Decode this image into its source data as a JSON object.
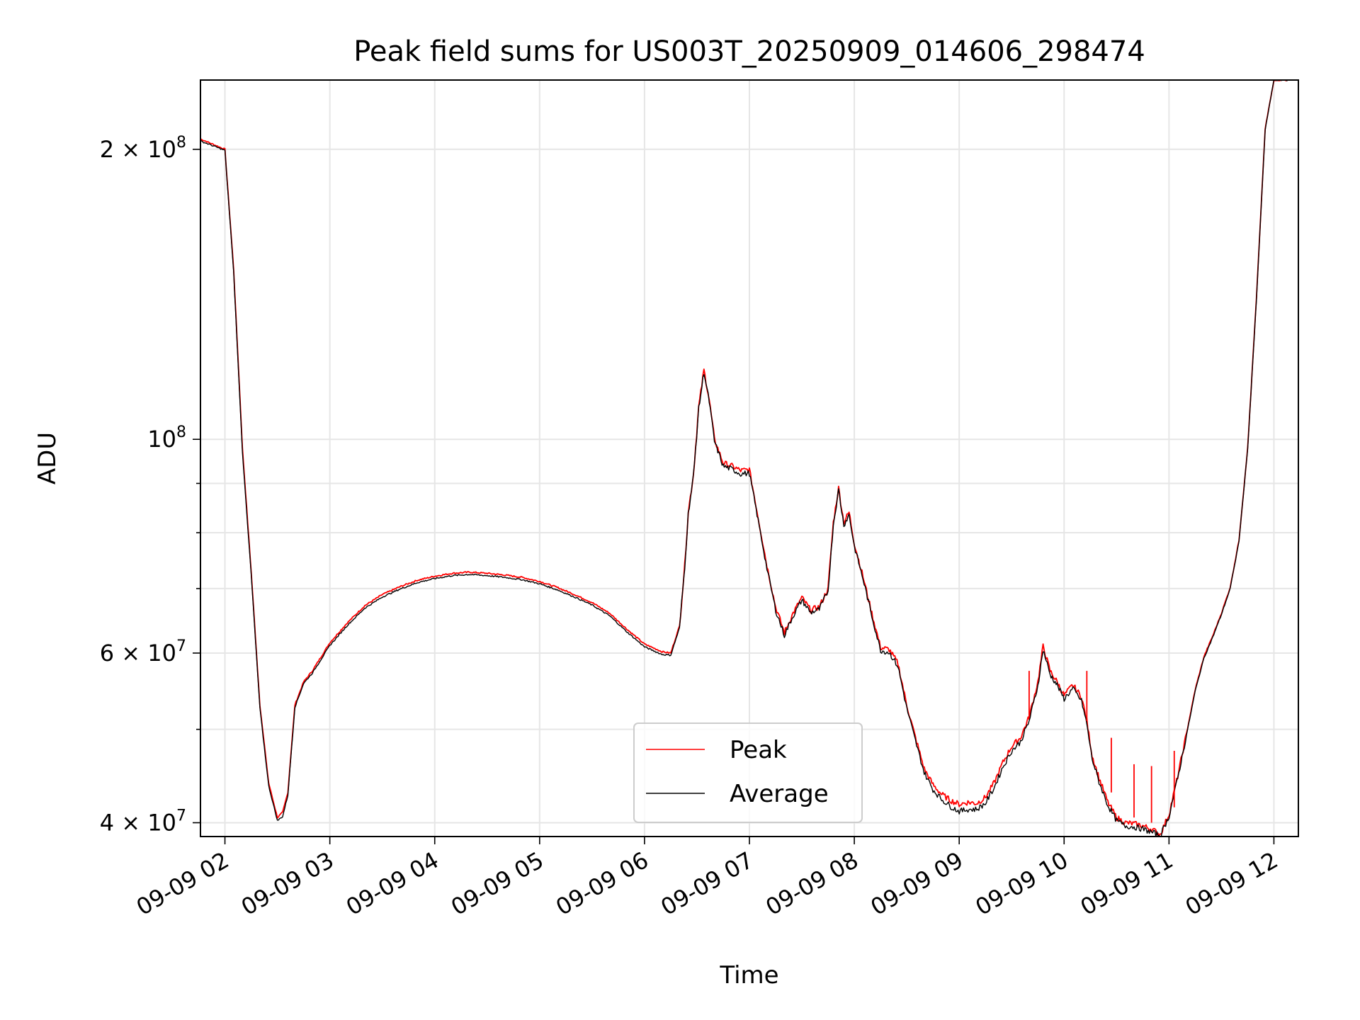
{
  "chart_data": {
    "type": "line",
    "title": "Peak field sums for US003T_20250909_014606_298474",
    "xlabel": "Time",
    "ylabel": "ADU",
    "yscale": "log",
    "grid": true,
    "legend_position": "lower-center",
    "xlim": [
      "09-09 01:46",
      "09-09 12:14"
    ],
    "ylim": [
      38700000,
      236000000
    ],
    "x_ticks": [
      "09-09 02",
      "09-09 03",
      "09-09 04",
      "09-09 05",
      "09-09 06",
      "09-09 07",
      "09-09 08",
      "09-09 09",
      "09-09 10",
      "09-09 11",
      "09-09 12"
    ],
    "y_ticks": [
      {
        "value": 40000000,
        "mantissa": "4",
        "exp": "7"
      },
      {
        "value": 60000000,
        "mantissa": "6",
        "exp": "7"
      },
      {
        "value": 100000000,
        "mantissa": "",
        "exp": "8"
      },
      {
        "value": 200000000,
        "mantissa": "2",
        "exp": "8"
      }
    ],
    "series": [
      {
        "name": "Peak",
        "color": "#ff0000",
        "x": [
          "01:46",
          "02:00",
          "02:05",
          "02:10",
          "02:15",
          "02:20",
          "02:25",
          "02:30",
          "02:33",
          "02:36",
          "02:40",
          "02:45",
          "02:50",
          "03:00",
          "03:10",
          "03:20",
          "03:30",
          "03:40",
          "03:50",
          "04:00",
          "04:10",
          "04:20",
          "04:30",
          "04:40",
          "04:50",
          "05:00",
          "05:10",
          "05:20",
          "05:30",
          "05:40",
          "05:50",
          "06:00",
          "06:10",
          "06:15",
          "06:20",
          "06:23",
          "06:25",
          "06:28",
          "06:31",
          "06:34",
          "06:37",
          "06:40",
          "06:45",
          "06:50",
          "06:55",
          "07:00",
          "07:05",
          "07:10",
          "07:15",
          "07:20",
          "07:25",
          "07:30",
          "07:35",
          "07:40",
          "07:45",
          "07:48",
          "07:51",
          "07:54",
          "07:57",
          "08:00",
          "08:05",
          "08:10",
          "08:15",
          "08:20",
          "08:25",
          "08:30",
          "08:35",
          "08:40",
          "08:45",
          "08:50",
          "08:55",
          "09:00",
          "09:05",
          "09:10",
          "09:15",
          "09:20",
          "09:25",
          "09:30",
          "09:35",
          "09:40",
          "09:45",
          "09:48",
          "09:52",
          "09:56",
          "10:00",
          "10:05",
          "10:10",
          "10:13",
          "10:16",
          "10:20",
          "10:25",
          "10:30",
          "10:35",
          "10:40",
          "10:45",
          "10:50",
          "10:55",
          "11:00",
          "11:05",
          "11:10",
          "11:15",
          "11:20",
          "11:25",
          "11:30",
          "11:35",
          "11:40",
          "11:45",
          "11:50",
          "11:55",
          "12:00",
          "12:05",
          "12:08"
        ],
        "y": [
          205000000,
          200000000,
          150000000,
          98000000,
          73000000,
          53000000,
          44000000,
          40500000,
          41000000,
          43000000,
          53000000,
          56000000,
          57500000,
          61500000,
          64500000,
          67200000,
          69000000,
          70300000,
          71400000,
          72100000,
          72600000,
          72800000,
          72600000,
          72300000,
          71900000,
          71200000,
          70200000,
          69000000,
          67700000,
          66000000,
          63500000,
          61300000,
          60200000,
          60000000,
          64000000,
          74000000,
          84000000,
          92000000,
          108000000,
          118000000,
          110000000,
          100000000,
          94500000,
          93800000,
          92800000,
          93000000,
          83000000,
          74000000,
          67000000,
          63000000,
          66000000,
          68500000,
          66500000,
          67000000,
          70000000,
          82000000,
          89000000,
          82000000,
          84000000,
          78000000,
          72000000,
          66000000,
          60800000,
          60500000,
          58500000,
          53000000,
          49000000,
          45500000,
          43800000,
          42800000,
          42200000,
          41800000,
          42000000,
          41900000,
          42500000,
          44000000,
          46200000,
          48000000,
          49000000,
          51500000,
          56000000,
          61000000,
          57500000,
          56000000,
          54200000,
          55600000,
          54000000,
          51000000,
          47000000,
          44500000,
          42000000,
          40500000,
          40000000,
          39900000,
          39700000,
          39400000,
          38900000,
          40800000,
          44700000,
          49500000,
          55000000,
          59500000,
          62500000,
          66000000,
          70200000,
          78500000,
          98000000,
          140000000,
          210000000,
          236000000,
          236000000,
          236000000
        ]
      },
      {
        "name": "Average",
        "color": "#000000",
        "x": [
          "01:46",
          "02:00",
          "02:05",
          "02:10",
          "02:15",
          "02:20",
          "02:25",
          "02:30",
          "02:33",
          "02:36",
          "02:40",
          "02:45",
          "02:50",
          "03:00",
          "03:10",
          "03:20",
          "03:30",
          "03:40",
          "03:50",
          "04:00",
          "04:10",
          "04:20",
          "04:30",
          "04:40",
          "04:50",
          "05:00",
          "05:10",
          "05:20",
          "05:30",
          "05:40",
          "05:50",
          "06:00",
          "06:10",
          "06:15",
          "06:20",
          "06:23",
          "06:25",
          "06:28",
          "06:31",
          "06:34",
          "06:37",
          "06:40",
          "06:45",
          "06:50",
          "06:55",
          "07:00",
          "07:05",
          "07:10",
          "07:15",
          "07:20",
          "07:25",
          "07:30",
          "07:35",
          "07:40",
          "07:45",
          "07:48",
          "07:51",
          "07:54",
          "07:57",
          "08:00",
          "08:05",
          "08:10",
          "08:15",
          "08:20",
          "08:25",
          "08:30",
          "08:35",
          "08:40",
          "08:45",
          "08:50",
          "08:55",
          "09:00",
          "09:05",
          "09:10",
          "09:15",
          "09:20",
          "09:25",
          "09:30",
          "09:35",
          "09:40",
          "09:45",
          "09:48",
          "09:52",
          "09:56",
          "10:00",
          "10:05",
          "10:10",
          "10:13",
          "10:16",
          "10:20",
          "10:25",
          "10:30",
          "10:35",
          "10:40",
          "10:45",
          "10:50",
          "10:55",
          "11:00",
          "11:05",
          "11:10",
          "11:15",
          "11:20",
          "11:25",
          "11:30",
          "11:35",
          "11:40",
          "11:45",
          "11:50",
          "11:55",
          "12:00",
          "12:05",
          "12:08"
        ],
        "y": [
          204000000,
          199500000,
          149000000,
          97000000,
          72500000,
          52600000,
          43700000,
          40200000,
          40600000,
          42700000,
          52700000,
          55800000,
          57200000,
          61100000,
          64100000,
          66800000,
          68600000,
          69900000,
          71000000,
          71700000,
          72200000,
          72400000,
          72200000,
          71900000,
          71500000,
          70800000,
          69800000,
          68600000,
          67300000,
          65600000,
          63100000,
          60900000,
          59800000,
          59700000,
          63700000,
          73700000,
          83700000,
          91600000,
          107500000,
          117500000,
          109500000,
          99500000,
          93800000,
          93100000,
          92100000,
          92200000,
          82400000,
          73500000,
          66500000,
          62600000,
          65600000,
          68100000,
          66100000,
          66600000,
          69600000,
          81600000,
          88600000,
          81500000,
          83500000,
          77500000,
          71600000,
          65600000,
          60400000,
          60100000,
          58100000,
          52600000,
          48600000,
          45100000,
          43300000,
          42300000,
          41600000,
          41100000,
          41300000,
          41300000,
          41900000,
          43500000,
          45700000,
          47500000,
          48500000,
          51000000,
          55500000,
          60500000,
          57000000,
          55600000,
          53800000,
          55100000,
          53500000,
          50600000,
          46600000,
          44100000,
          41700000,
          40200000,
          39700000,
          39600000,
          39400000,
          39100000,
          38800000,
          40600000,
          44500000,
          49300000,
          54800000,
          59300000,
          62300000,
          65800000,
          70000000,
          78300000,
          97800000,
          139500000,
          209500000,
          236000000,
          236000000,
          236000000
        ]
      }
    ]
  }
}
